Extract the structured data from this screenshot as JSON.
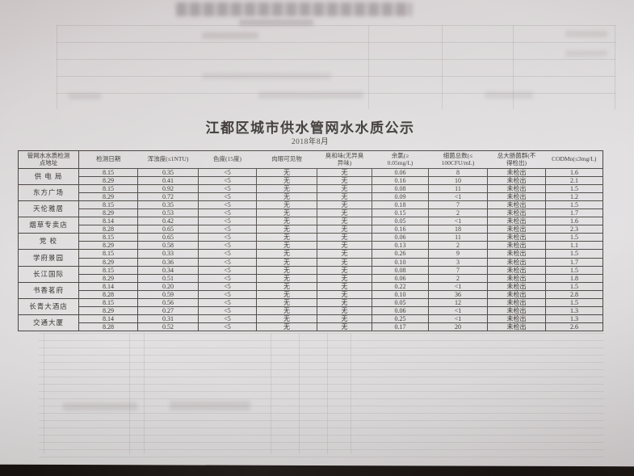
{
  "document": {
    "title": "江都区城市供水管网水水质公示",
    "subtitle": "2018年8月"
  },
  "table": {
    "headers": [
      "管网水水质检测\n点地址",
      "检测日期",
      "浑浊度(≤1NTU)",
      "色度(15度)",
      "肉眼可见物",
      "臭和味(无异臭\n异味)",
      "余氯(≥\n0.05mg/L)",
      "细菌总数(≤\n100CFU/mL)",
      "总大肠菌群(不\n得检出)",
      "CODMn(≤3mg/L)"
    ],
    "locations": [
      {
        "name": "供 电 局",
        "samples": [
          {
            "values": [
              "8.15",
              "0.35",
              "<5",
              "无",
              "无",
              "0.06",
              "8",
              "未检出",
              "1.6"
            ]
          },
          {
            "values": [
              "8.29",
              "0.41",
              "<5",
              "无",
              "无",
              "0.16",
              "10",
              "未检出",
              "2.1"
            ]
          }
        ]
      },
      {
        "name": "东方广场",
        "samples": [
          {
            "values": [
              "8.15",
              "0.92",
              "<5",
              "无",
              "无",
              "0.08",
              "11",
              "未检出",
              "1.5"
            ]
          },
          {
            "values": [
              "8.29",
              "0.72",
              "<5",
              "无",
              "无",
              "0.09",
              "<1",
              "未检出",
              "1.2"
            ]
          }
        ]
      },
      {
        "name": "天伦雅居",
        "samples": [
          {
            "values": [
              "8.15",
              "0.35",
              "<5",
              "无",
              "无",
              "0.18",
              "7",
              "未检出",
              "1.5"
            ]
          },
          {
            "values": [
              "8.29",
              "0.53",
              "<5",
              "无",
              "无",
              "0.15",
              "2",
              "未检出",
              "1.7"
            ]
          }
        ]
      },
      {
        "name": "烟草专卖店",
        "samples": [
          {
            "values": [
              "8.14",
              "0.42",
              "<5",
              "无",
              "无",
              "0.05",
              "<1",
              "未检出",
              "1.6"
            ]
          },
          {
            "values": [
              "8.28",
              "0.65",
              "<5",
              "无",
              "无",
              "0.16",
              "18",
              "未检出",
              "2.3"
            ]
          }
        ]
      },
      {
        "name": "党  校",
        "samples": [
          {
            "values": [
              "8.15",
              "0.65",
              "<5",
              "无",
              "无",
              "0.06",
              "11",
              "未检出",
              "1.5"
            ]
          },
          {
            "values": [
              "8.29",
              "0.58",
              "<5",
              "无",
              "无",
              "0.13",
              "2",
              "未检出",
              "1.1"
            ]
          }
        ]
      },
      {
        "name": "学府景园",
        "samples": [
          {
            "values": [
              "8.15",
              "0.33",
              "<5",
              "无",
              "无",
              "0.26",
              "9",
              "未检出",
              "1.5"
            ]
          },
          {
            "values": [
              "8.29",
              "0.36",
              "<5",
              "无",
              "无",
              "0.10",
              "3",
              "未检出",
              "1.7"
            ]
          }
        ]
      },
      {
        "name": "长江国际",
        "samples": [
          {
            "values": [
              "8.15",
              "0.34",
              "<5",
              "无",
              "无",
              "0.08",
              "7",
              "未检出",
              "1.5"
            ]
          },
          {
            "values": [
              "8.29",
              "0.51",
              "<5",
              "无",
              "无",
              "0.06",
              "2",
              "未检出",
              "1.8"
            ]
          }
        ]
      },
      {
        "name": "书香茗府",
        "samples": [
          {
            "values": [
              "8.14",
              "0.20",
              "<5",
              "无",
              "无",
              "0.22",
              "<1",
              "未检出",
              "1.5"
            ]
          },
          {
            "values": [
              "8.28",
              "0.59",
              "<5",
              "无",
              "无",
              "0.10",
              "36",
              "未检出",
              "2.8"
            ]
          }
        ]
      },
      {
        "name": "长青大酒店",
        "samples": [
          {
            "values": [
              "8.15",
              "0.56",
              "<5",
              "无",
              "无",
              "0.05",
              "12",
              "未检出",
              "1.5"
            ]
          },
          {
            "values": [
              "8.29",
              "0.27",
              "<5",
              "无",
              "无",
              "0.06",
              "<1",
              "未检出",
              "1.3"
            ]
          }
        ]
      },
      {
        "name": "交通大厦",
        "samples": [
          {
            "values": [
              "8.14",
              "0.31",
              "<5",
              "无",
              "无",
              "0.25",
              "<1",
              "未检出",
              "1.3"
            ]
          },
          {
            "values": [
              "8.28",
              "0.52",
              "<5",
              "无",
              "无",
              "0.17",
              "20",
              "未检出",
              "2.6"
            ]
          }
        ]
      }
    ]
  },
  "colors": {
    "paper": "#dedbdc",
    "ink": "#393431",
    "surface": "#1a1614"
  }
}
